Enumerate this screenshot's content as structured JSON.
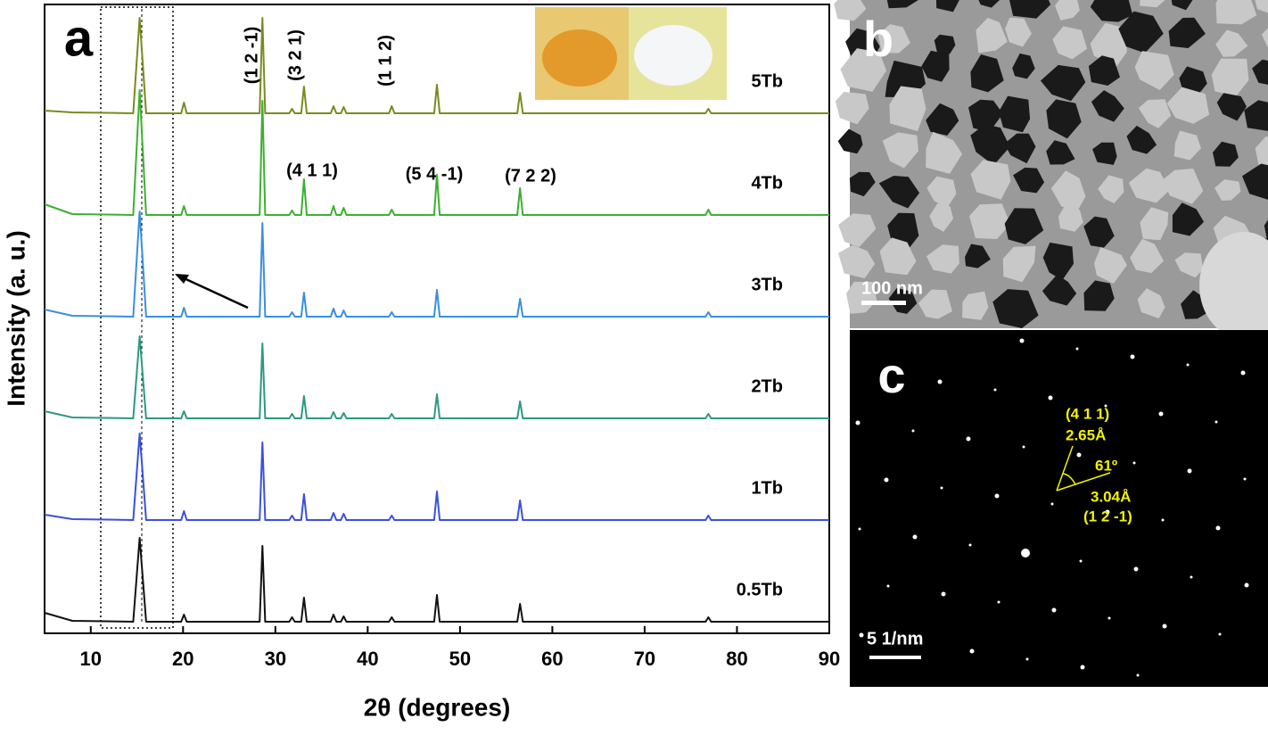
{
  "chart_data": {
    "type": "line",
    "x_label": "2θ (degrees)",
    "y_label": "Intensity (a. u.)",
    "panel_label": "a",
    "xlim": [
      5,
      90
    ],
    "xticks": [
      10,
      20,
      30,
      40,
      50,
      60,
      70,
      80,
      90
    ],
    "x": [
      5,
      8,
      14.6,
      15.3,
      16.0,
      19.8,
      20.1,
      20.4,
      28.3,
      28.6,
      28.9,
      31.5,
      31.8,
      32.1,
      32.8,
      33.1,
      33.4,
      36.0,
      36.3,
      36.6,
      37.1,
      37.4,
      37.7,
      42.3,
      42.6,
      42.9,
      47.2,
      47.5,
      47.8,
      56.2,
      56.5,
      56.8,
      76.6,
      76.9,
      77.2,
      90
    ],
    "series": [
      {
        "name": "0.5Tb",
        "color": "#111111",
        "values": [
          10,
          1,
          0,
          94,
          0,
          0,
          8,
          0,
          0,
          85,
          0,
          0,
          5,
          0,
          0,
          27,
          0,
          0,
          8,
          0,
          0,
          6,
          0,
          0,
          5,
          0,
          0,
          30,
          0,
          0,
          20,
          0,
          0,
          5,
          0,
          0
        ]
      },
      {
        "name": "1Tb",
        "color": "#3a50e0",
        "values": [
          6,
          1,
          0,
          97,
          0,
          0,
          10,
          0,
          0,
          87,
          0,
          0,
          5,
          0,
          0,
          29,
          0,
          0,
          8,
          0,
          0,
          7,
          0,
          0,
          5,
          0,
          0,
          32,
          0,
          0,
          22,
          0,
          0,
          5,
          0,
          0
        ]
      },
      {
        "name": "2Tb",
        "color": "#2a9a80",
        "values": [
          8,
          1,
          0,
          92,
          0,
          0,
          8,
          0,
          0,
          84,
          0,
          0,
          5,
          0,
          0,
          25,
          0,
          0,
          7,
          0,
          0,
          6,
          0,
          0,
          5,
          0,
          0,
          27,
          0,
          0,
          19,
          0,
          0,
          5,
          0,
          0
        ]
      },
      {
        "name": "3Tb",
        "color": "#3a8ee0",
        "values": [
          8,
          1,
          0,
          118,
          0,
          0,
          10,
          0,
          0,
          105,
          0,
          0,
          5,
          0,
          0,
          27,
          0,
          0,
          9,
          0,
          0,
          7,
          0,
          0,
          5,
          0,
          0,
          30,
          0,
          0,
          20,
          0,
          0,
          5,
          0,
          0
        ]
      },
      {
        "name": "4Tb",
        "color": "#3cb030",
        "values": [
          12,
          1,
          0,
          140,
          0,
          0,
          10,
          0,
          0,
          128,
          0,
          0,
          5,
          0,
          0,
          40,
          0,
          0,
          10,
          0,
          0,
          8,
          0,
          0,
          6,
          0,
          0,
          45,
          0,
          0,
          30,
          0,
          0,
          6,
          0,
          0
        ]
      },
      {
        "name": "5Tb",
        "color": "#7a8a20",
        "values": [
          3,
          1,
          0,
          107,
          0,
          0,
          12,
          0,
          0,
          107,
          0,
          0,
          5,
          0,
          0,
          30,
          0,
          0,
          8,
          0,
          0,
          7,
          0,
          0,
          8,
          0,
          0,
          32,
          0,
          0,
          23,
          0,
          0,
          5,
          0,
          0
        ]
      }
    ],
    "annotations": [
      "(1 2 -1)",
      "(3 2 1)",
      "(1 1 2)",
      "(4 1 1)",
      "(5 4 -1)",
      "(7 2 2)"
    ]
  },
  "panel_b": {
    "label": "b",
    "scale_bar": "100 nm"
  },
  "panel_c": {
    "label": "c",
    "scale_bar": "5 1/nm",
    "plane_1": "(4 1 1)",
    "d_1": "2.65Å",
    "angle": "61º",
    "d_2": "3.04Å",
    "plane_2": "(1 2 -1)"
  }
}
